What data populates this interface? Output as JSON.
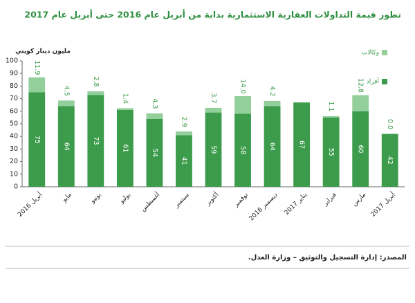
{
  "chart_data": {
    "type": "stacked-bar",
    "title": "تطور قيمة التداولات العقارية الاستثمارية بداية من أبريل عام 2016 حتى أبريل عام 2017",
    "y_label": "مليون دينار كويتي",
    "source": "المصدر: إدارة التسجيل والتوثيق – وزارة العدل.",
    "categories": [
      "أبريل 2016",
      "مايو",
      "يونيو",
      "يوليو",
      "أغسطس",
      "سبتمبر",
      "أكتوبر",
      "نوفمبر",
      "ديسمبر 2016",
      "يناير 2017",
      "فبراير",
      "مارس",
      "أبريل 2017"
    ],
    "series": [
      {
        "name": "أفراد",
        "color": "#3c9c4c",
        "values": [
          75,
          64,
          73,
          61,
          54,
          41,
          59,
          58,
          64,
          67,
          55,
          60,
          42
        ]
      },
      {
        "name": "وكالات",
        "color": "#93cf9b",
        "values": [
          11.9,
          4.5,
          2.8,
          1.4,
          4.3,
          2.9,
          3.7,
          14,
          4.2,
          null,
          1.1,
          12.8,
          0
        ],
        "value_labels": [
          "11.9",
          "4.5",
          "2.8",
          "1.4",
          "4.3",
          "2.9",
          "3.7",
          "14.0",
          "4.2",
          null,
          "1.1",
          "12.8",
          "0.0"
        ]
      }
    ],
    "ylim": [
      0,
      100
    ],
    "yticks": [
      0,
      10,
      20,
      30,
      40,
      50,
      60,
      70,
      80,
      90,
      100
    ],
    "legend": "top-right"
  }
}
